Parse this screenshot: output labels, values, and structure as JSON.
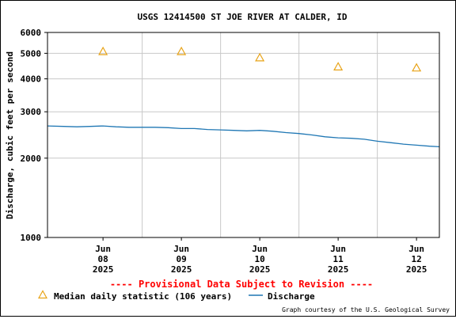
{
  "chart_data": {
    "type": "line",
    "title": "USGS 12414500 ST JOE RIVER AT CALDER, ID",
    "ylabel": "Discharge, cubic feet per second",
    "xlabel": "",
    "y_scale": "log",
    "ylim": [
      1000,
      6000
    ],
    "y_ticks": [
      {
        "value": 1000,
        "label": "1000"
      },
      {
        "value": 2000,
        "label": "2000"
      },
      {
        "value": 3000,
        "label": "3000"
      },
      {
        "value": 4000,
        "label": "4000"
      },
      {
        "value": 5000,
        "label": "5000"
      },
      {
        "value": 6000,
        "label": "6000"
      }
    ],
    "x_range": [
      "2025-06-07T19:00",
      "2025-06-12T19:00"
    ],
    "x_ticks": [
      {
        "date": "2025-06-08T12:00",
        "month": "Jun",
        "day": "08",
        "year": "2025"
      },
      {
        "date": "2025-06-09T12:00",
        "month": "Jun",
        "day": "09",
        "year": "2025"
      },
      {
        "date": "2025-06-10T12:00",
        "month": "Jun",
        "day": "10",
        "year": "2025"
      },
      {
        "date": "2025-06-11T12:00",
        "month": "Jun",
        "day": "11",
        "year": "2025"
      },
      {
        "date": "2025-06-12T12:00",
        "month": "Jun",
        "day": "12",
        "year": "2025"
      }
    ],
    "x_gridlines": [
      "2025-06-09T00:00",
      "2025-06-10T00:00",
      "2025-06-11T00:00",
      "2025-06-12T00:00"
    ],
    "grid": true,
    "series": [
      {
        "name": "Discharge",
        "color": "#1f77b4",
        "points": [
          {
            "x": "2025-06-07T19:00",
            "y": 2650
          },
          {
            "x": "2025-06-08T00:00",
            "y": 2640
          },
          {
            "x": "2025-06-08T04:00",
            "y": 2630
          },
          {
            "x": "2025-06-08T08:00",
            "y": 2640
          },
          {
            "x": "2025-06-08T12:00",
            "y": 2650
          },
          {
            "x": "2025-06-08T16:00",
            "y": 2630
          },
          {
            "x": "2025-06-08T20:00",
            "y": 2620
          },
          {
            "x": "2025-06-09T00:00",
            "y": 2620
          },
          {
            "x": "2025-06-09T04:00",
            "y": 2620
          },
          {
            "x": "2025-06-09T08:00",
            "y": 2610
          },
          {
            "x": "2025-06-09T12:00",
            "y": 2590
          },
          {
            "x": "2025-06-09T16:00",
            "y": 2590
          },
          {
            "x": "2025-06-09T20:00",
            "y": 2570
          },
          {
            "x": "2025-06-10T00:00",
            "y": 2560
          },
          {
            "x": "2025-06-10T04:00",
            "y": 2550
          },
          {
            "x": "2025-06-10T08:00",
            "y": 2540
          },
          {
            "x": "2025-06-10T12:00",
            "y": 2550
          },
          {
            "x": "2025-06-10T16:00",
            "y": 2530
          },
          {
            "x": "2025-06-10T20:00",
            "y": 2500
          },
          {
            "x": "2025-06-11T00:00",
            "y": 2480
          },
          {
            "x": "2025-06-11T04:00",
            "y": 2450
          },
          {
            "x": "2025-06-11T08:00",
            "y": 2410
          },
          {
            "x": "2025-06-11T12:00",
            "y": 2390
          },
          {
            "x": "2025-06-11T16:00",
            "y": 2380
          },
          {
            "x": "2025-06-11T20:00",
            "y": 2360
          },
          {
            "x": "2025-06-12T00:00",
            "y": 2320
          },
          {
            "x": "2025-06-12T04:00",
            "y": 2290
          },
          {
            "x": "2025-06-12T08:00",
            "y": 2260
          },
          {
            "x": "2025-06-12T12:00",
            "y": 2240
          },
          {
            "x": "2025-06-12T16:00",
            "y": 2220
          },
          {
            "x": "2025-06-12T19:00",
            "y": 2210
          }
        ]
      },
      {
        "name": "Median daily statistic (106 years)",
        "color": "#e8a317",
        "marker": "triangle",
        "points": [
          {
            "x": "2025-06-08T12:00",
            "y": 5100
          },
          {
            "x": "2025-06-09T12:00",
            "y": 5100
          },
          {
            "x": "2025-06-10T12:00",
            "y": 4830
          },
          {
            "x": "2025-06-11T12:00",
            "y": 4460
          },
          {
            "x": "2025-06-12T12:00",
            "y": 4420
          }
        ]
      }
    ],
    "legend": {
      "placement": "bottom-left",
      "entries": [
        {
          "label": "Median daily statistic (106 years)",
          "symbol": "triangle",
          "color": "#e8a317"
        },
        {
          "label": "Discharge",
          "symbol": "line",
          "color": "#1f77b4"
        }
      ]
    },
    "annotations": {
      "provisional": "---- Provisional Data Subject to Revision ----",
      "credit": "Graph courtesy of the U.S. Geological Survey"
    }
  }
}
